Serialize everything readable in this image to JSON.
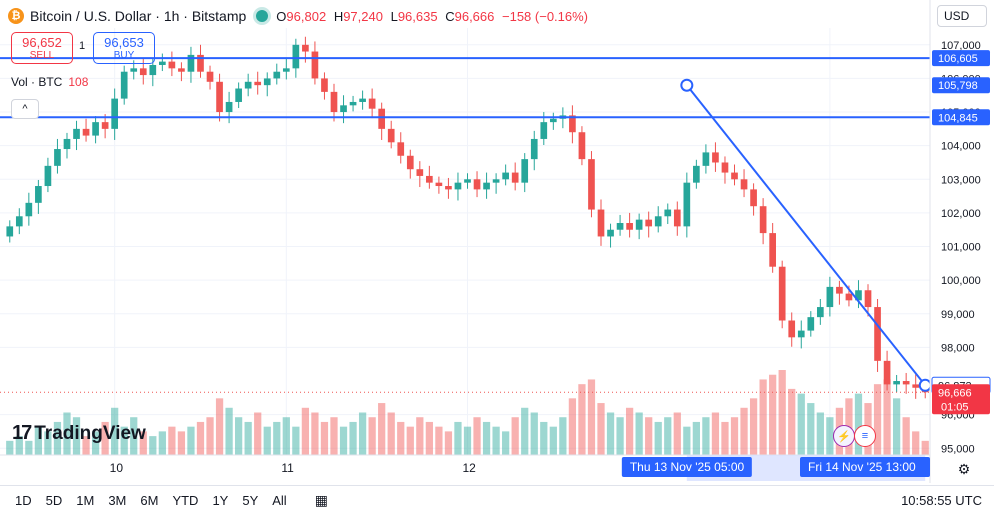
{
  "header": {
    "coin_glyph": "₿",
    "title": "Bitcoin / U.S. Dollar · 1h · Bitstamp",
    "ohlc": {
      "o_label": "O",
      "o": "96,802",
      "h_label": "H",
      "h": "97,240",
      "l_label": "L",
      "l": "96,635",
      "c_label": "C",
      "c": "96,666",
      "change": "−158 (−0.16%)"
    }
  },
  "trade": {
    "sell_price": "96,652",
    "sell_label": "SELL",
    "quantity": "1",
    "buy_price": "96,653",
    "buy_label": "BUY"
  },
  "volume_legend": {
    "label": "Vol · BTC",
    "value": "108"
  },
  "collapse_glyph": "^",
  "currency": "USD",
  "logo": {
    "mark": "17",
    "text": "TradingView"
  },
  "bottom_bar": {
    "ranges": [
      "1D",
      "5D",
      "1M",
      "3M",
      "6M",
      "YTD",
      "1Y",
      "5Y",
      "All"
    ],
    "clock": "10:58:55 UTC"
  },
  "chart_data": {
    "type": "candlestick",
    "symbol": "Bitcoin / U.S. Dollar",
    "interval": "1h",
    "exchange": "Bitstamp",
    "y_axis": {
      "ticks": [
        107000,
        106000,
        105000,
        104000,
        103000,
        102000,
        101000,
        100000,
        99000,
        98000,
        96000,
        95000
      ],
      "tick_labels": [
        "107,000",
        "106,000",
        "105,000",
        "104,000",
        "103,000",
        "102,000",
        "101,000",
        "100,000",
        "99,000",
        "98,000",
        "96,000",
        "95,000"
      ],
      "range": [
        94800,
        107500
      ]
    },
    "x_axis": {
      "tick_labels": [
        {
          "label": "10",
          "index": 11
        },
        {
          "label": "11",
          "index": 29
        },
        {
          "label": "12",
          "index": 48
        },
        {
          "label": "14",
          "index": 86
        }
      ]
    },
    "horizontal_lines": [
      {
        "value": 106605,
        "label": "106,605",
        "color": "#2962ff"
      },
      {
        "value": 104845,
        "label": "104,845",
        "color": "#2962ff"
      }
    ],
    "trend_line": {
      "from": {
        "index": 71,
        "value": 105798
      },
      "to": {
        "index": 96,
        "value": 96873
      },
      "color": "#2962ff"
    },
    "price_markers": [
      {
        "value": 105798,
        "label": "105,798",
        "style": "blue"
      },
      {
        "value": 96873,
        "label": "96,873",
        "style": "outline"
      },
      {
        "value": 96666,
        "label": "96,666",
        "sub": "01:05",
        "style": "red"
      }
    ],
    "crosshair_labels": [
      {
        "label": "Thu 13 Nov '25   05:00",
        "index": 71
      },
      {
        "label": "Fri 14 Nov '25   13:00",
        "index": 96
      }
    ],
    "closes": [
      101600,
      101900,
      102300,
      102800,
      103400,
      103900,
      104200,
      104500,
      104300,
      104700,
      104500,
      105400,
      106200,
      106300,
      106100,
      106400,
      106500,
      106300,
      106200,
      106700,
      106200,
      105900,
      105000,
      105300,
      105700,
      105900,
      105800,
      106000,
      106200,
      106300,
      107000,
      106800,
      106000,
      105600,
      105000,
      105200,
      105300,
      105400,
      105100,
      104500,
      104100,
      103700,
      103300,
      103100,
      102900,
      102800,
      102700,
      102900,
      103000,
      102700,
      102900,
      103000,
      103200,
      102900,
      103600,
      104200,
      104700,
      104800,
      104900,
      104400,
      103600,
      102100,
      101300,
      101500,
      101700,
      101500,
      101800,
      101600,
      101900,
      102100,
      101600,
      102900,
      103400,
      103800,
      103500,
      103200,
      103000,
      102700,
      102200,
      101400,
      100400,
      98800,
      98300,
      98500,
      98900,
      99200,
      99800,
      99600,
      99400,
      99700,
      99200,
      97600,
      96900,
      97000,
      96900,
      96800,
      96666
    ],
    "volumes": [
      3,
      4,
      3,
      6,
      5,
      7,
      9,
      8,
      4,
      5,
      7,
      10,
      6,
      8,
      5,
      4,
      5,
      6,
      5,
      6,
      7,
      8,
      12,
      10,
      8,
      7,
      9,
      6,
      7,
      8,
      6,
      10,
      9,
      7,
      8,
      6,
      7,
      9,
      8,
      11,
      9,
      7,
      6,
      8,
      7,
      6,
      5,
      7,
      6,
      8,
      7,
      6,
      5,
      8,
      10,
      9,
      7,
      6,
      8,
      12,
      15,
      16,
      11,
      9,
      8,
      10,
      9,
      8,
      7,
      8,
      9,
      6,
      7,
      8,
      9,
      7,
      8,
      10,
      12,
      16,
      17,
      18,
      14,
      13,
      11,
      9,
      8,
      10,
      12,
      13,
      11,
      15,
      16,
      12,
      8,
      5,
      3
    ]
  }
}
